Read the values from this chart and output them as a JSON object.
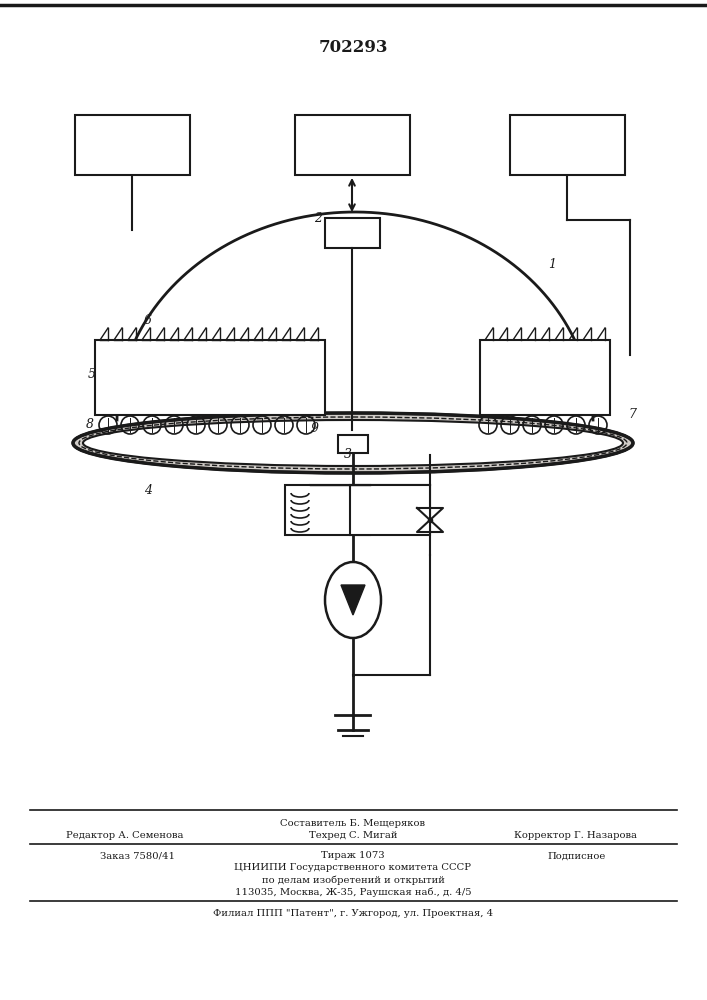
{
  "patent_number": "702293",
  "bg_color": "#ffffff",
  "line_color": "#1a1a1a",
  "footer": {
    "line1_center": "Составитель Б. Мещеряков",
    "line2_left": "Редактор А. Семенова",
    "line2_mid": "Техред С. Мигай",
    "line2_right": "Корректор Г. Назарова",
    "line3_left": "Заказ 7580/41",
    "line3_mid": "Тираж 1073",
    "line3_right": "Подписное",
    "line4": "ЦНИИПИ Государственного комитета СССР",
    "line5": "по делам изобретений и открытий",
    "line6": "113035, Москва, Ж-35, Раушская наб., д. 4/5",
    "line7": "Филиал ППП \"Патент\", г. Ужгород, ул. Проектная, 4"
  }
}
